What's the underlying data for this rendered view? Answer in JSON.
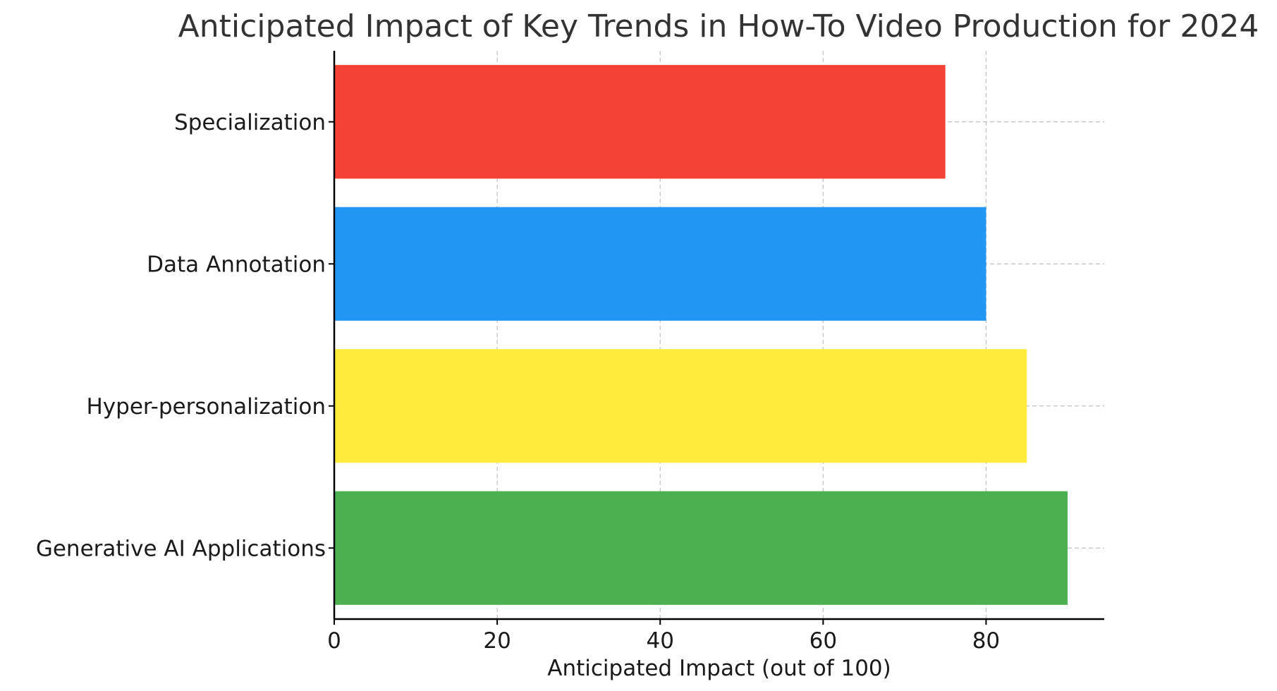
{
  "chart_data": {
    "type": "bar",
    "orientation": "horizontal",
    "title": "Anticipated Impact of Key Trends in How-To Video Production for 2024",
    "xlabel": "Anticipated Impact (out of 100)",
    "ylabel": "",
    "categories": [
      "Generative AI Applications",
      "Hyper-personalization",
      "Data Annotation",
      "Specialization"
    ],
    "values": [
      90,
      85,
      80,
      75
    ],
    "colors": [
      "#4caf50",
      "#ffeb3b",
      "#2196f3",
      "#f44336"
    ],
    "xlim": [
      0,
      94.5
    ],
    "xticks": [
      0,
      20,
      40,
      60,
      80
    ],
    "grid": true
  }
}
